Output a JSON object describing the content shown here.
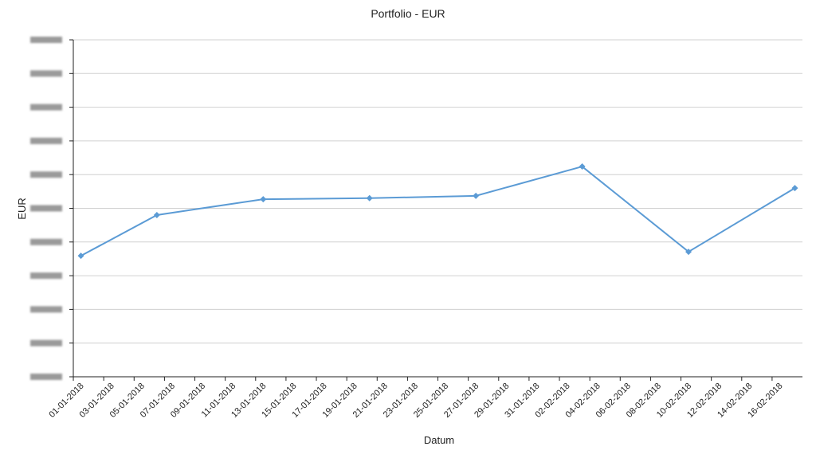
{
  "chart_data": {
    "type": "line",
    "title": "Portfolio - EUR",
    "x_label": "Datum",
    "y_label": "EUR",
    "x": [
      "01-01-2018",
      "06-01-2018",
      "13-01-2018",
      "20-01-2018",
      "27-01-2018",
      "03-02-2018",
      "10-02-2018",
      "17-02-2018"
    ],
    "series": [
      {
        "name": "Portfolio",
        "color": "#5b9bd5",
        "values": [
          3.59,
          4.8,
          5.27,
          5.3,
          5.37,
          6.24,
          3.71,
          5.6
        ]
      }
    ],
    "xlim": [
      "01-01-2018",
      "18-02-2018"
    ],
    "xticks": [
      "01-01-2018",
      "03-01-2018",
      "05-01-2018",
      "07-01-2018",
      "09-01-2018",
      "11-01-2018",
      "13-01-2018",
      "15-01-2018",
      "17-01-2018",
      "19-01-2018",
      "21-01-2018",
      "23-01-2018",
      "25-01-2018",
      "27-01-2018",
      "29-01-2018",
      "31-01-2018",
      "02-02-2018",
      "04-02-2018",
      "06-02-2018",
      "08-02-2018",
      "10-02-2018",
      "12-02-2018",
      "14-02-2018",
      "16-02-2018"
    ],
    "ylim": [
      0,
      10
    ],
    "yticks": [
      0,
      1,
      2,
      3,
      4,
      5,
      6,
      7,
      8,
      9,
      10
    ],
    "grid": true
  }
}
